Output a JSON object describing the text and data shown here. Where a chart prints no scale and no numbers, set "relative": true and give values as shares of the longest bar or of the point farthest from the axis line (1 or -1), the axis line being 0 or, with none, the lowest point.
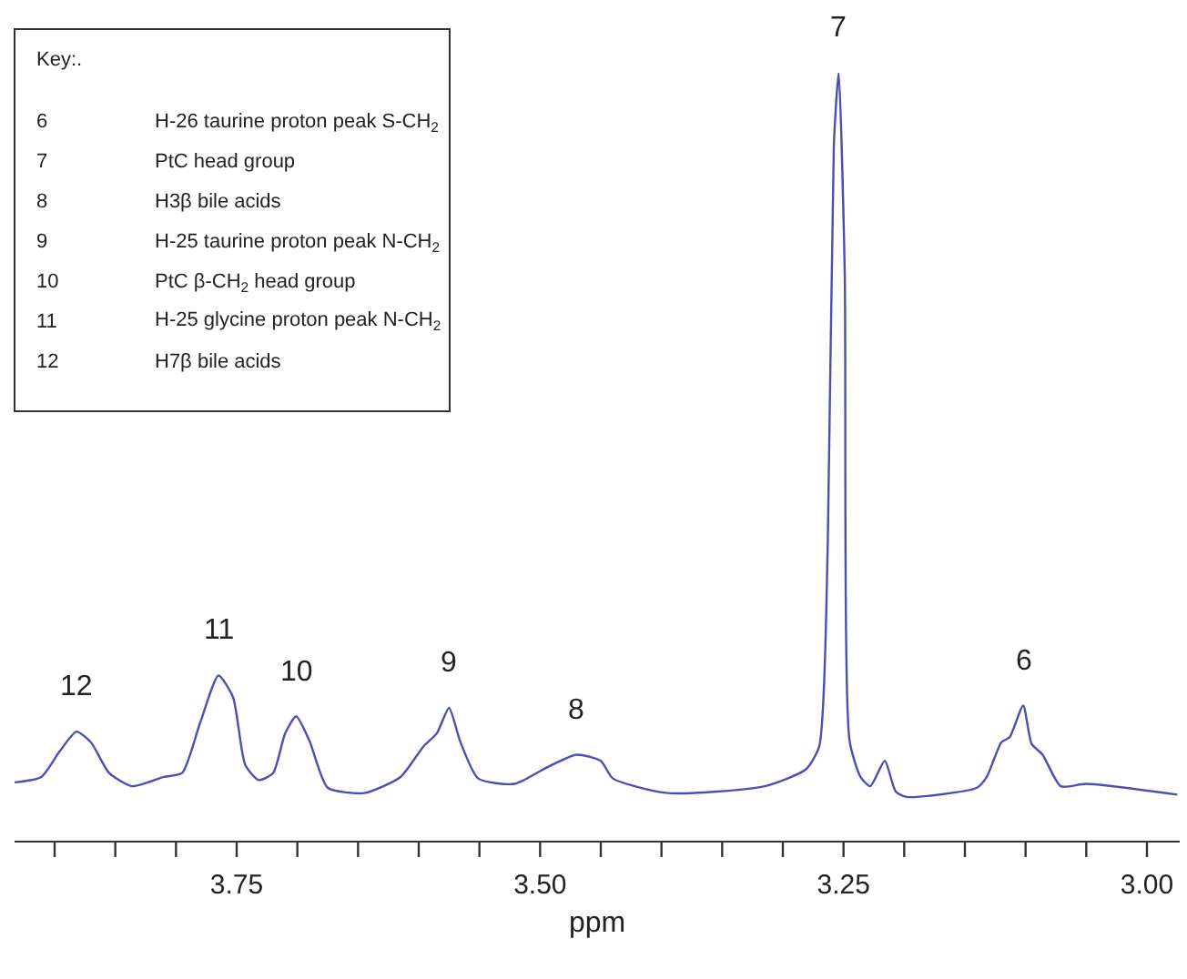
{
  "chart_data": {
    "type": "line",
    "relative": true,
    "xlabel": "ppm",
    "x": [
      3.933,
      3.911,
      3.896,
      3.882,
      3.87,
      3.855,
      3.836,
      3.81,
      3.795,
      3.78,
      3.765,
      3.753,
      3.743,
      3.732,
      3.72,
      3.71,
      3.701,
      3.69,
      3.675,
      3.645,
      3.615,
      3.596,
      3.585,
      3.575,
      3.566,
      3.551,
      3.521,
      3.495,
      3.47,
      3.45,
      3.44,
      3.395,
      3.315,
      3.281,
      3.27,
      3.263,
      3.258,
      3.254,
      3.249,
      3.245,
      3.236,
      3.228,
      3.216,
      3.207,
      3.198,
      3.14,
      3.132,
      3.12,
      3.113,
      3.102,
      3.095,
      3.086,
      3.071,
      3.05,
      2.975
    ],
    "series": [
      {
        "color": "#4a4fb0",
        "values": [
          0.076,
          0.083,
          0.116,
          0.142,
          0.128,
          0.088,
          0.071,
          0.083,
          0.088,
          0.154,
          0.215,
          0.187,
          0.099,
          0.079,
          0.088,
          0.14,
          0.162,
          0.13,
          0.069,
          0.062,
          0.083,
          0.123,
          0.14,
          0.173,
          0.13,
          0.081,
          0.074,
          0.095,
          0.112,
          0.104,
          0.081,
          0.062,
          0.071,
          0.093,
          0.123,
          0.384,
          0.905,
          1,
          0.74,
          0.13,
          0.083,
          0.071,
          0.104,
          0.064,
          0.057,
          0.069,
          0.083,
          0.128,
          0.135,
          0.176,
          0.126,
          0.112,
          0.071,
          0.074,
          0.06
        ]
      }
    ],
    "xlim": [
      3.933,
      2.973
    ],
    "xticks": [
      {
        "value": 3.9,
        "label": null
      },
      {
        "value": 3.85,
        "label": null
      },
      {
        "value": 3.8,
        "label": null
      },
      {
        "value": 3.75,
        "label": "3.75"
      },
      {
        "value": 3.7,
        "label": null
      },
      {
        "value": 3.65,
        "label": null
      },
      {
        "value": 3.6,
        "label": null
      },
      {
        "value": 3.55,
        "label": null
      },
      {
        "value": 3.5,
        "label": "3.50"
      },
      {
        "value": 3.45,
        "label": null
      },
      {
        "value": 3.4,
        "label": null
      },
      {
        "value": 3.35,
        "label": null
      },
      {
        "value": 3.3,
        "label": null
      },
      {
        "value": 3.25,
        "label": "3.25"
      },
      {
        "value": 3.2,
        "label": null
      },
      {
        "value": 3.15,
        "label": null
      },
      {
        "value": 3.1,
        "label": null
      },
      {
        "value": 3.05,
        "label": null
      },
      {
        "value": 3.0,
        "label": "3.00"
      }
    ],
    "tick_labels": "x",
    "marker": "none",
    "line_style": "solid",
    "annotations": [
      {
        "text": "12",
        "x": 3.882,
        "y": 0.142
      },
      {
        "text": "11",
        "x": 3.765,
        "y": 0.215
      },
      {
        "text": "10",
        "x": 3.701,
        "y": 0.162
      },
      {
        "text": "9",
        "x": 3.575,
        "y": 0.173
      },
      {
        "text": "8",
        "x": 3.47,
        "y": 0.112
      },
      {
        "text": "7",
        "x": 3.254,
        "y": 1
      },
      {
        "text": "6",
        "x": 3.102,
        "y": 0.176
      },
      "Key:.",
      "6",
      "H-26 taurine proton peak S-CH$_{2}$",
      "7",
      "PtC head group",
      "8",
      "H3β bile acids",
      "9",
      "H-25 taurine proton peak N-CH$_{2}$",
      "10",
      "PtC β-CH$_{2}$ head group",
      "11",
      "H-25 glycine proton peak N-CH$_{2}$",
      "12",
      "H7β bile acids"
    ]
  }
}
